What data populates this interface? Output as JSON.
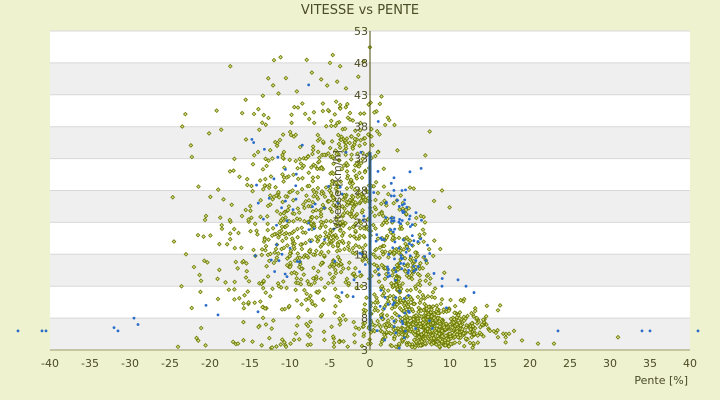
{
  "chart_data": {
    "type": "scatter",
    "title": "VITESSE vs PENTE",
    "xlabel": "Pente [%]",
    "ylabel": "Vitesse [km/h]",
    "xlim": [
      -40,
      40
    ],
    "ylim": [
      3,
      53
    ],
    "x_ticks": [
      -40,
      -35,
      -30,
      -25,
      -20,
      -15,
      -10,
      -5,
      0,
      5,
      10,
      15,
      20,
      25,
      30,
      35,
      40
    ],
    "y_ticks": [
      3,
      8,
      13,
      18,
      23,
      28,
      33,
      38,
      43,
      48,
      53
    ],
    "grid": true,
    "legend": "none",
    "colors": {
      "background": "#eef2cf",
      "band_light": "#ffffff",
      "band_dark": "#efefef",
      "series_1": "#6b7a00",
      "series_2": "#2a6cc9",
      "zero_axis": "#4a4a00",
      "zero_bar": "#2a6cc9"
    },
    "series": [
      {
        "marker": "diamond",
        "color": "#6b7a00",
        "points": [
          [
            -24.0,
            3.5
          ],
          [
            -24.5,
            20.0
          ],
          [
            -23.0,
            18.0
          ],
          [
            -22.0,
            16.0
          ],
          [
            -21.5,
            21.0
          ],
          [
            -20.5,
            24.0
          ],
          [
            -19.0,
            11.0
          ],
          [
            -18.5,
            22.0
          ],
          [
            -17.5,
            31.0
          ],
          [
            -16.5,
            4.0
          ],
          [
            -16.0,
            24.0
          ],
          [
            -15.5,
            36.0
          ],
          [
            -14.5,
            40.0
          ],
          [
            -13.0,
            7.0
          ],
          [
            -12.0,
            27.0
          ],
          [
            -10.5,
            3.5
          ],
          [
            -9.0,
            41.0
          ],
          [
            -8.0,
            33.0
          ],
          [
            -6.5,
            12.0
          ],
          [
            -5.0,
            48.0
          ],
          [
            -4.5,
            3.5
          ],
          [
            -3.0,
            44.0
          ],
          [
            -2.0,
            15.0
          ],
          [
            -1.0,
            30.0
          ],
          [
            1.0,
            34.0
          ],
          [
            1.5,
            13.0
          ],
          [
            2.0,
            6.5
          ],
          [
            3.0,
            11.0
          ],
          [
            4.0,
            22.0
          ],
          [
            5.0,
            8.0
          ],
          [
            6.0,
            7.5
          ],
          [
            7.0,
            5.5
          ],
          [
            8.0,
            8.0
          ],
          [
            9.0,
            6.0
          ],
          [
            10.0,
            7.0
          ],
          [
            11.0,
            5.0
          ],
          [
            12.0,
            6.5
          ],
          [
            13.0,
            5.5
          ],
          [
            14.0,
            7.0
          ],
          [
            15.0,
            6.0
          ],
          [
            16.0,
            5.0
          ],
          [
            17.0,
            5.5
          ],
          [
            18.0,
            6.0
          ],
          [
            19.0,
            4.5
          ],
          [
            21.0,
            4.0
          ],
          [
            23.0,
            4.0
          ],
          [
            31.0,
            5.0
          ],
          [
            9.0,
            28.0
          ]
        ],
        "cloud": [
          {
            "x": -9,
            "sx": 5.5,
            "y": 22,
            "sy": 10,
            "n": 620
          },
          {
            "x": -3,
            "sx": 2.3,
            "y": 29,
            "sy": 9,
            "n": 260
          },
          {
            "x": 4,
            "sx": 2.4,
            "y": 14,
            "sy": 6,
            "n": 300
          },
          {
            "x": 8,
            "sx": 3.3,
            "y": 6.3,
            "sy": 1.8,
            "n": 520
          }
        ]
      },
      {
        "marker": "dot",
        "color": "#2a6cc9",
        "points": [
          [
            -44.0,
            6.0
          ],
          [
            -41.0,
            6.0
          ],
          [
            -40.5,
            6.0
          ],
          [
            -32.0,
            6.5
          ],
          [
            -31.5,
            6.0
          ],
          [
            -29.5,
            8.0
          ],
          [
            -29.0,
            7.0
          ],
          [
            -20.5,
            10.0
          ],
          [
            -19.0,
            8.5
          ],
          [
            -14.0,
            9.0
          ],
          [
            -11.0,
            18.0
          ],
          [
            -7.0,
            22.0
          ],
          [
            -4.0,
            26.0
          ],
          [
            -3.0,
            34.0
          ],
          [
            -2.0,
            14.0
          ],
          [
            -1.0,
            18.0
          ],
          [
            1.0,
            31.0
          ],
          [
            2.0,
            26.0
          ],
          [
            3.0,
            30.0
          ],
          [
            4.0,
            28.0
          ],
          [
            5.0,
            24.0
          ],
          [
            6.0,
            20.0
          ],
          [
            7.0,
            17.0
          ],
          [
            8.0,
            15.0
          ],
          [
            9.0,
            13.0
          ],
          [
            11.0,
            14.0
          ],
          [
            12.0,
            13.0
          ],
          [
            13.0,
            12.0
          ],
          [
            23.5,
            6.0
          ],
          [
            34.0,
            6.0
          ],
          [
            35.0,
            6.0
          ],
          [
            41.0,
            6.0
          ]
        ],
        "cloud": [
          {
            "x": 3.5,
            "sx": 2.2,
            "y": 19,
            "sy": 7,
            "n": 120
          },
          {
            "x": -8,
            "sx": 4,
            "y": 24,
            "sy": 8,
            "n": 45
          }
        ]
      }
    ],
    "zero_bar": {
      "x": 0,
      "y_from": 6,
      "y_to": 34
    }
  }
}
